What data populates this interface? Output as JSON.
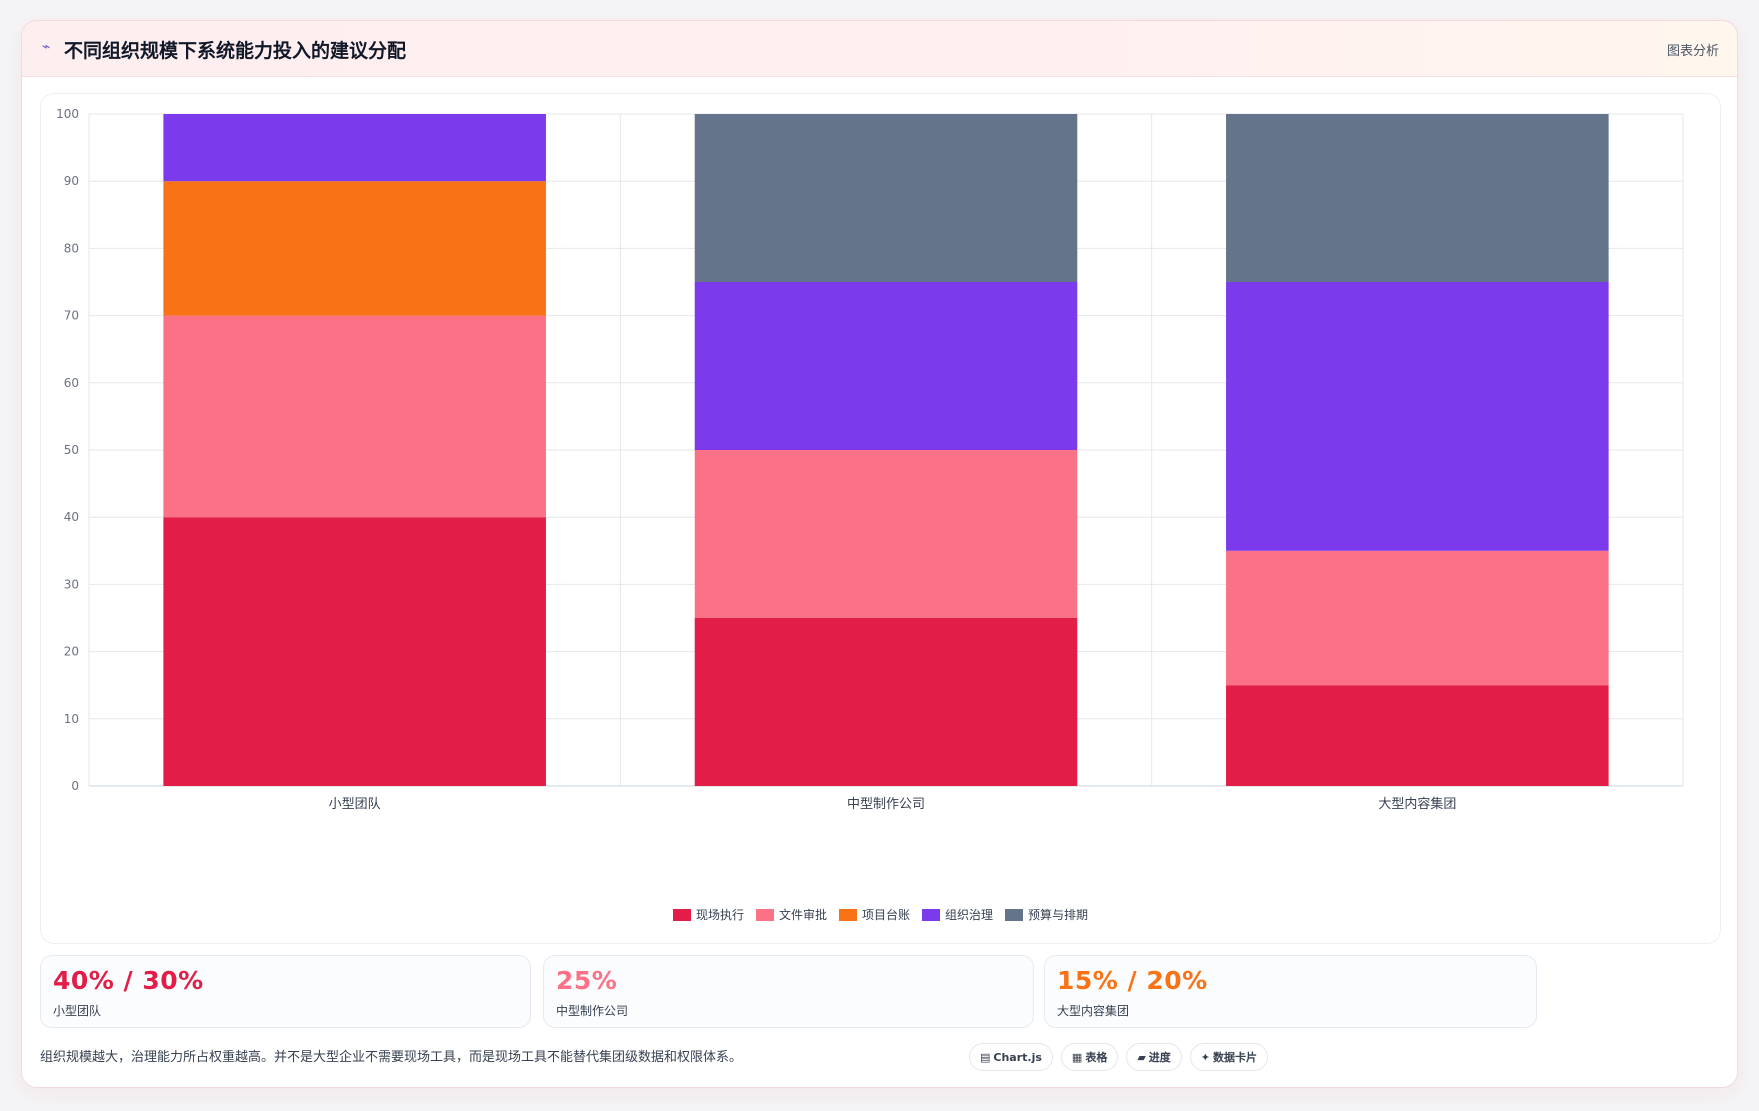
{
  "header": {
    "title": "不同组织规模下系统能力投入的建议分配",
    "title_icon": "chart-line-icon",
    "tag": "图表分析"
  },
  "chart_data": {
    "type": "bar",
    "stacked": true,
    "categories": [
      "小型团队",
      "中型制作公司",
      "大型内容集团"
    ],
    "series": [
      {
        "name": "现场执行",
        "color": "#e11d48",
        "values": [
          40,
          25,
          15
        ]
      },
      {
        "name": "文件审批",
        "color": "#fb7185",
        "values": [
          30,
          25,
          20
        ]
      },
      {
        "name": "项目台账",
        "color": "#f97316",
        "values": [
          20,
          0,
          0
        ]
      },
      {
        "name": "组织治理",
        "color": "#7c3aed",
        "values": [
          10,
          25,
          40
        ]
      },
      {
        "name": "预算与排期",
        "color": "#64748b",
        "values": [
          0,
          25,
          25
        ]
      }
    ],
    "ylim": [
      0,
      100
    ],
    "yticks": [
      0,
      10,
      20,
      30,
      40,
      50,
      60,
      70,
      80,
      90,
      100
    ],
    "grid": true,
    "legend": "bottom-center"
  },
  "stats": [
    {
      "value": "40% / 30%",
      "label": "小型团队",
      "color": "#e11d48"
    },
    {
      "value": "25%",
      "label": "中型制作公司",
      "color": "#fb7185"
    },
    {
      "value": "15% / 20%",
      "label": "大型内容集团",
      "color": "#f97316"
    }
  ],
  "footer": {
    "note": "组织规模越大，治理能力所占权重越高。并不是大型企业不需要现场工具，而是现场工具不能替代集团级数据和权限体系。"
  },
  "chips": [
    {
      "icon": "chart-icon",
      "glyph": "▤",
      "label": "Chart.js"
    },
    {
      "icon": "table-icon",
      "glyph": "▦",
      "label": "表格"
    },
    {
      "icon": "progress-icon",
      "glyph": "▰",
      "label": "进度"
    },
    {
      "icon": "card-icon",
      "glyph": "✦",
      "label": "数据卡片"
    }
  ]
}
